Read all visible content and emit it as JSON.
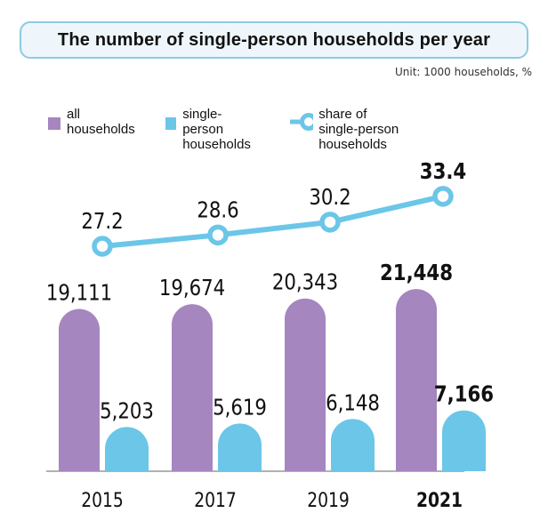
{
  "title": "The number of single-person households per year",
  "unit": "Unit: 1000 households, %",
  "colors": {
    "all_households": "#a586bf",
    "single_person": "#6bc6e8",
    "share_line": "#6bc6e8",
    "title_border": "#8ccbe0",
    "title_fill": "#eef6fc",
    "axis": "#999999"
  },
  "legend": [
    {
      "key": "all_households",
      "label_line1": "all",
      "label_line2": "households",
      "marker": "square"
    },
    {
      "key": "single_person",
      "label_line1": "single-person",
      "label_line2": "households",
      "marker": "square"
    },
    {
      "key": "share_line",
      "label_line1": "share of single-person",
      "label_line2": "households",
      "marker": "line-circle"
    }
  ],
  "chart_data": {
    "type": "bar",
    "title": "The number of single-person households per year",
    "xlabel": "",
    "ylabel": "",
    "unit": "1000 households, %",
    "categories": [
      "2015",
      "2017",
      "2019",
      "2021"
    ],
    "highlight_category": "2021",
    "series": [
      {
        "name": "all households",
        "type": "bar",
        "values": [
          19111,
          19674,
          20343,
          21448
        ],
        "labels": [
          "19,111",
          "19,674",
          "20,343",
          "21,448"
        ]
      },
      {
        "name": "single-person households",
        "type": "bar",
        "values": [
          5203,
          5619,
          6148,
          7166
        ],
        "labels": [
          "5,203",
          "5,619",
          "6,148",
          "7,166"
        ]
      },
      {
        "name": "share of single-person households",
        "type": "line",
        "values": [
          27.2,
          28.6,
          30.2,
          33.4
        ],
        "labels": [
          "27.2",
          "28.6",
          "30.2",
          "33.4"
        ]
      }
    ],
    "grid": false,
    "legend_position": "top-left"
  }
}
